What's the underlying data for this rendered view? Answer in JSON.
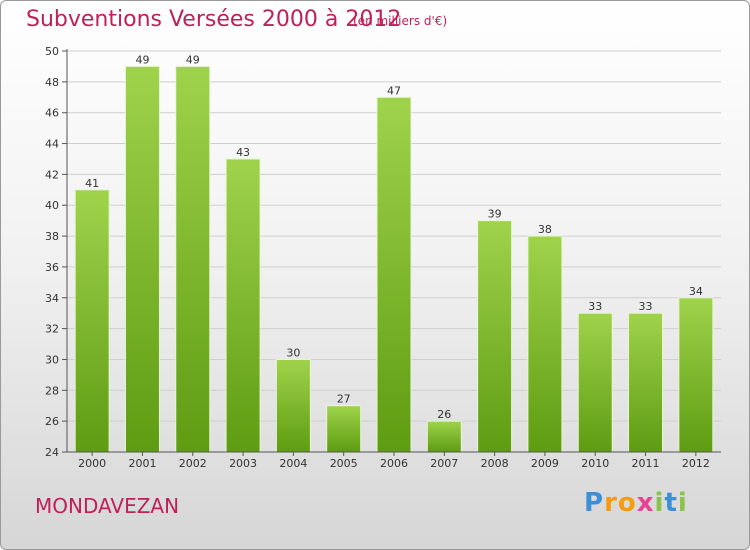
{
  "header": {
    "title": "Subventions Versées 2000 à 2012",
    "subtitle": "(en milliers d'€)"
  },
  "commune": "MONDAVEZAN",
  "logo": {
    "text": "Proxiti",
    "letters": [
      {
        "char": "P",
        "color": "#3a8fd6"
      },
      {
        "char": "r",
        "color": "#f39c12"
      },
      {
        "char": "o",
        "color": "#f39c12"
      },
      {
        "char": "x",
        "color": "#e84393"
      },
      {
        "char": "i",
        "color": "#8bc34a"
      },
      {
        "char": "t",
        "color": "#3a8fd6"
      },
      {
        "char": "i",
        "color": "#8bc34a"
      }
    ]
  },
  "colors": {
    "title": "#c0205a",
    "bar_top": "#9fd34b",
    "bar_bottom": "#5e9c12",
    "grid": "#cfcfcf",
    "axis": "#555555"
  },
  "chart_data": {
    "type": "bar",
    "title": "Subventions Versées 2000 à 2012",
    "subtitle": "(en milliers d'€)",
    "categories": [
      "2000",
      "2001",
      "2002",
      "2003",
      "2004",
      "2005",
      "2006",
      "2007",
      "2008",
      "2009",
      "2010",
      "2011",
      "2012"
    ],
    "values": [
      41,
      49,
      49,
      43,
      30,
      27,
      47,
      26,
      39,
      38,
      33,
      33,
      34
    ],
    "ylim": [
      24,
      50
    ],
    "yticks": [
      24,
      26,
      28,
      30,
      32,
      34,
      36,
      38,
      40,
      42,
      44,
      46,
      48,
      50
    ],
    "grid": true,
    "data_labels": true
  }
}
